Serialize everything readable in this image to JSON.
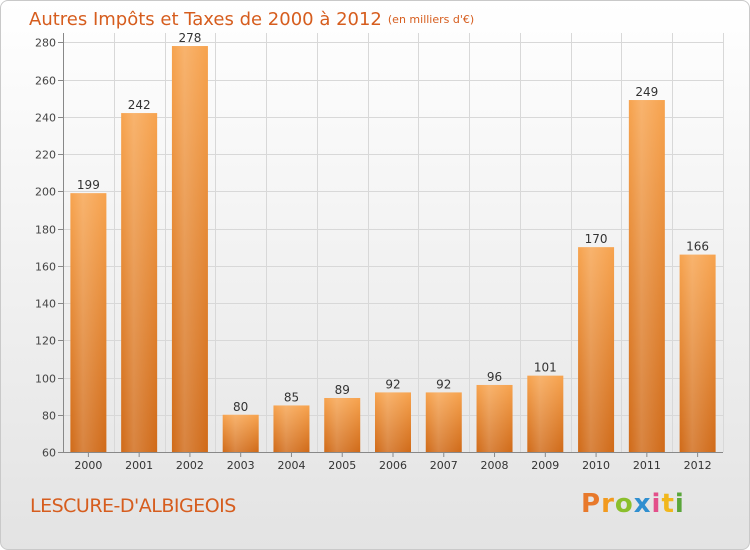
{
  "header": {
    "title": "Autres Impôts et Taxes de 2000 à 2012",
    "subtitle": "(en milliers d'€)"
  },
  "footer": {
    "place": "LESCURE-D'ALBIGEOIS",
    "brand_letters": [
      "P",
      "r",
      "o",
      "x",
      "i",
      "t",
      "i"
    ]
  },
  "colors": {
    "title": "#d65d1e",
    "bar_top": "#f7a34e",
    "bar_bottom": "#d06a18",
    "grid": "#d8d8d8"
  },
  "chart_data": {
    "type": "bar",
    "categories": [
      "2000",
      "2001",
      "2002",
      "2003",
      "2004",
      "2005",
      "2006",
      "2007",
      "2008",
      "2009",
      "2010",
      "2011",
      "2012"
    ],
    "values": [
      199,
      242,
      278,
      80,
      85,
      89,
      92,
      92,
      96,
      101,
      170,
      249,
      166
    ],
    "yticks": [
      60,
      80,
      100,
      120,
      140,
      160,
      180,
      200,
      220,
      240,
      260,
      280
    ],
    "ylim": [
      60,
      285
    ],
    "grid": true
  }
}
